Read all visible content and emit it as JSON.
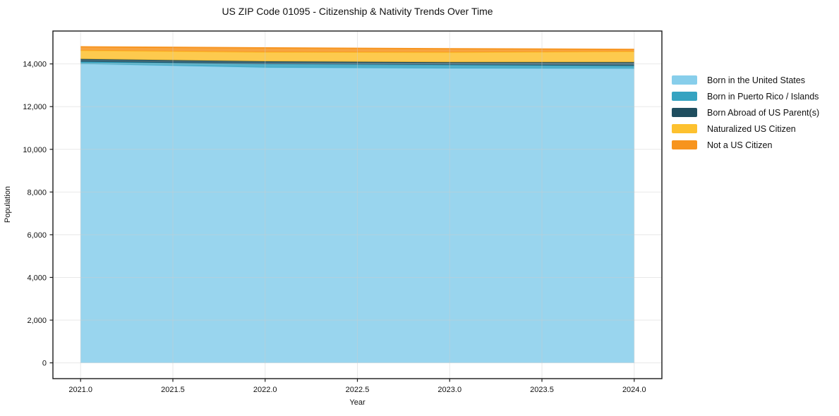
{
  "colors": {
    "background": "#ffffff",
    "grid": "#cccccc",
    "spine": "#1a1a1a",
    "text": "#111111"
  },
  "chart_data": {
    "type": "area",
    "stacked": true,
    "title": "US ZIP Code 01095 - Citizenship & Nativity Trends Over Time",
    "xlabel": "Year",
    "ylabel": "Population",
    "x": [
      2021,
      2022,
      2023,
      2024
    ],
    "series": [
      {
        "name": "Born in the United States",
        "color": "#87CEEB",
        "values": [
          14000,
          13830,
          13790,
          13780
        ]
      },
      {
        "name": "Born in Puerto Rico / Islands",
        "color": "#35A3C1",
        "values": [
          100,
          160,
          160,
          130
        ]
      },
      {
        "name": "Born Abroad of US Parent(s)",
        "color": "#1F4E5F",
        "values": [
          130,
          130,
          130,
          170
        ]
      },
      {
        "name": "Naturalized US Citizen",
        "color": "#FDC12F",
        "values": [
          400,
          430,
          460,
          500
        ]
      },
      {
        "name": "Not a US Citizen",
        "color": "#F7941E",
        "values": [
          170,
          200,
          170,
          100
        ]
      }
    ],
    "stack_totals": [
      14800,
      14750,
      14710,
      14680
    ],
    "xticks": [
      2021.0,
      2021.5,
      2022.0,
      2022.5,
      2023.0,
      2023.5,
      2024.0
    ],
    "xtick_labels": [
      "2021.0",
      "2021.5",
      "2022.0",
      "2022.5",
      "2023.0",
      "2023.5",
      "2024.0"
    ],
    "yticks": [
      0,
      2000,
      4000,
      6000,
      8000,
      10000,
      12000,
      14000
    ],
    "ytick_labels": [
      "0",
      "2,000",
      "4,000",
      "6,000",
      "8,000",
      "10,000",
      "12,000",
      "14,000"
    ],
    "xlim": [
      2020.85,
      2024.15
    ],
    "ylim": [
      -740,
      15540
    ],
    "grid": true,
    "fill_opacity": 0.85,
    "legend_position": "right"
  }
}
